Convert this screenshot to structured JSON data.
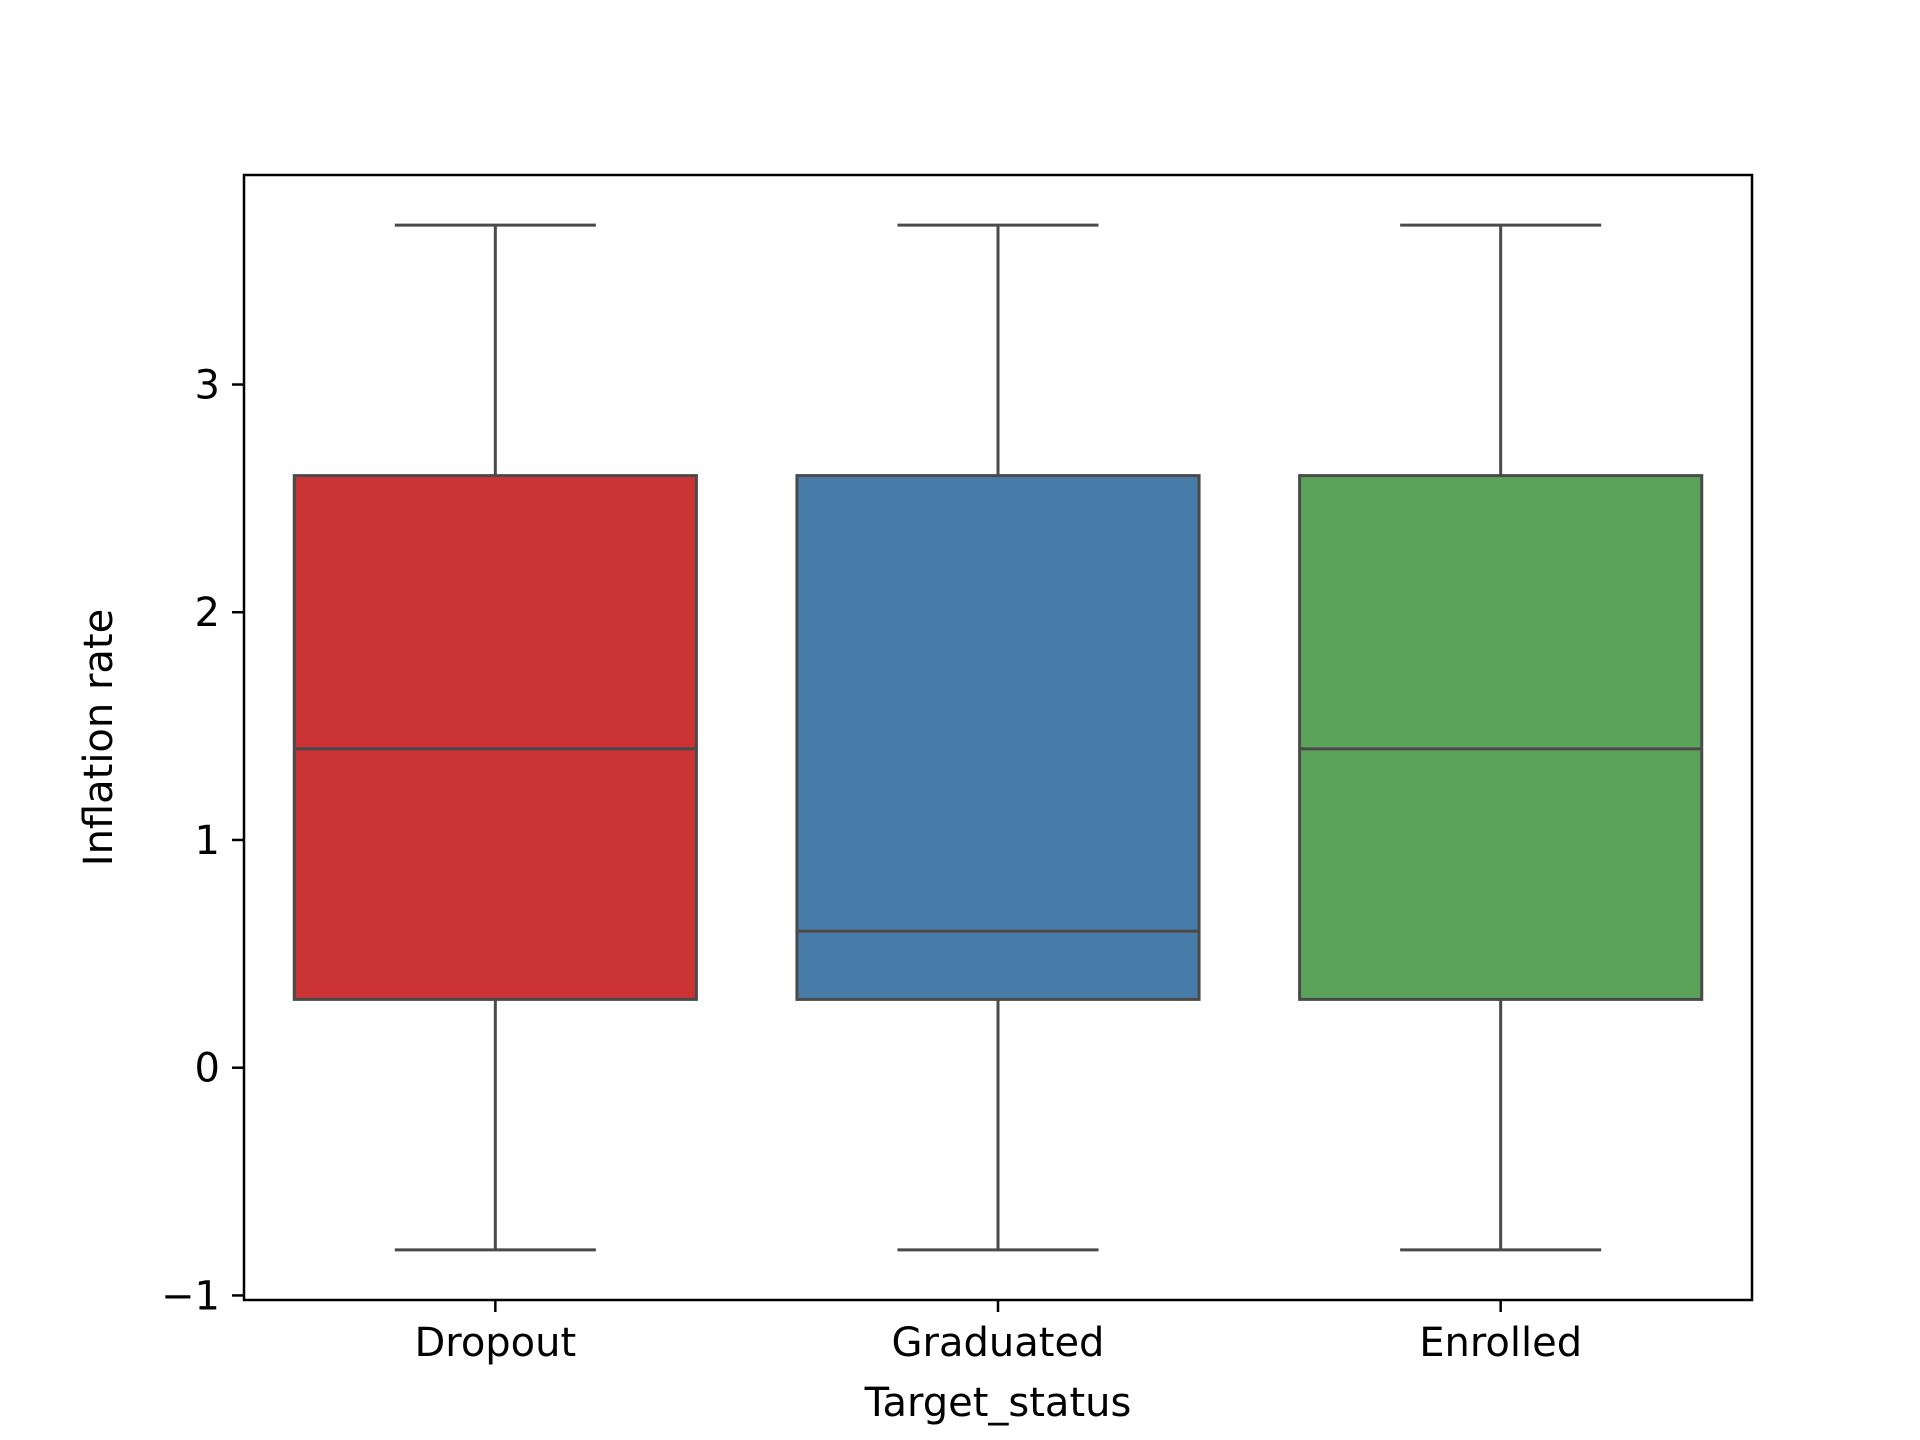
{
  "chart_data": {
    "type": "box",
    "title": "",
    "xlabel": "Target_status",
    "ylabel": "Inflation rate",
    "ylim": [
      -1.02,
      3.92
    ],
    "yticks": [
      -1,
      0,
      1,
      2,
      3
    ],
    "ytick_labels": [
      "−1",
      "0",
      "1",
      "2",
      "3"
    ],
    "grid": false,
    "categories": [
      "Dropout",
      "Graduated",
      "Enrolled"
    ],
    "boxes": [
      {
        "category": "Dropout",
        "whisker_low": -0.8,
        "q1": 0.3,
        "median": 1.4,
        "q3": 2.6,
        "whisker_high": 3.7,
        "color": "#cc3335"
      },
      {
        "category": "Graduated",
        "whisker_low": -0.8,
        "q1": 0.3,
        "median": 0.6,
        "q3": 2.6,
        "whisker_high": 3.7,
        "color": "#477ca8"
      },
      {
        "category": "Enrolled",
        "whisker_low": -0.8,
        "q1": 0.3,
        "median": 1.4,
        "q3": 2.6,
        "whisker_high": 3.7,
        "color": "#5ba358"
      }
    ],
    "line_color": "#4a4a4a"
  }
}
